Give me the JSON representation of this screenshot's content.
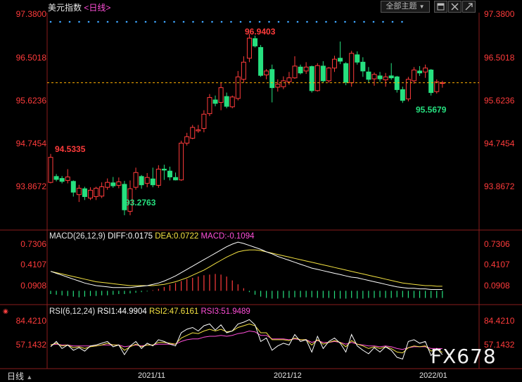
{
  "header": {
    "title": "美元指数",
    "period": "<日线>",
    "btn_theme": "全部主题",
    "btn_theme_caret": "▼"
  },
  "main_axis": {
    "labels": [
      "97.3800",
      "96.5018",
      "95.6236",
      "94.7454",
      "93.8672"
    ]
  },
  "price_marks": {
    "high": "96.9403",
    "low": "93.2763",
    "left": "94.5335",
    "recent_low": "95.5679"
  },
  "macd": {
    "name": "MACD(26,12,9)",
    "diff": "DIFF:0.0175",
    "dea": "DEA:0.0722",
    "macd": "MACD:-0.1094",
    "axis": [
      "0.7306",
      "0.4107",
      "0.0908"
    ]
  },
  "rsi": {
    "name": "RSI(6,12,24)",
    "rsi1": "RSI1:44.9904",
    "rsi2": "RSI2:47.6161",
    "rsi3": "RSI3:51.9489",
    "axis": [
      "84.4210",
      "57.1432"
    ]
  },
  "footer": {
    "period_btn": "日线",
    "caret": "▲",
    "dates": [
      "2021/11",
      "2021/12",
      "2022/01"
    ]
  },
  "watermark": "FX678",
  "colors": {
    "up": "#ff3b3b",
    "down": "#26e07f",
    "axis": "#ff3b3b",
    "dash": "#ffb000",
    "dots": "#3fa6ff"
  },
  "chart_data": {
    "type": "candlestick",
    "y_range": [
      93.0,
      97.4
    ],
    "candles": [
      {
        "o": 93.95,
        "h": 94.53,
        "l": 93.93,
        "c": 94.46
      },
      {
        "o": 94.07,
        "h": 94.12,
        "l": 93.97,
        "c": 94.01
      },
      {
        "o": 94.03,
        "h": 94.08,
        "l": 93.93,
        "c": 93.97
      },
      {
        "o": 93.99,
        "h": 94.22,
        "l": 93.93,
        "c": 94.06
      },
      {
        "o": 93.97,
        "h": 93.99,
        "l": 93.66,
        "c": 93.75
      },
      {
        "o": 93.7,
        "h": 93.9,
        "l": 93.55,
        "c": 93.83
      },
      {
        "o": 93.82,
        "h": 93.86,
        "l": 93.59,
        "c": 93.66
      },
      {
        "o": 93.63,
        "h": 93.85,
        "l": 93.59,
        "c": 93.79
      },
      {
        "o": 93.66,
        "h": 93.86,
        "l": 93.59,
        "c": 93.83
      },
      {
        "o": 93.67,
        "h": 93.95,
        "l": 93.63,
        "c": 93.86
      },
      {
        "o": 93.85,
        "h": 94.03,
        "l": 93.8,
        "c": 93.95
      },
      {
        "o": 93.94,
        "h": 94.06,
        "l": 93.84,
        "c": 93.88
      },
      {
        "o": 93.89,
        "h": 94.05,
        "l": 93.83,
        "c": 93.96
      },
      {
        "o": 93.91,
        "h": 93.98,
        "l": 93.28,
        "c": 93.39
      },
      {
        "o": 93.36,
        "h": 93.99,
        "l": 93.28,
        "c": 93.82
      },
      {
        "o": 93.85,
        "h": 94.25,
        "l": 93.8,
        "c": 94.15
      },
      {
        "o": 94.07,
        "h": 94.1,
        "l": 93.82,
        "c": 93.9
      },
      {
        "o": 93.93,
        "h": 94.14,
        "l": 93.85,
        "c": 94.05
      },
      {
        "o": 94.02,
        "h": 94.25,
        "l": 93.85,
        "c": 93.9
      },
      {
        "o": 93.89,
        "h": 94.3,
        "l": 93.84,
        "c": 94.22
      },
      {
        "o": 94.22,
        "h": 94.31,
        "l": 94.0,
        "c": 94.2
      },
      {
        "o": 94.18,
        "h": 94.27,
        "l": 93.99,
        "c": 94.06
      },
      {
        "o": 94.05,
        "h": 94.15,
        "l": 93.99,
        "c": 94.0
      },
      {
        "o": 94.0,
        "h": 94.8,
        "l": 93.98,
        "c": 94.75
      },
      {
        "o": 94.75,
        "h": 94.96,
        "l": 94.7,
        "c": 94.88
      },
      {
        "o": 94.85,
        "h": 95.12,
        "l": 94.83,
        "c": 95.07
      },
      {
        "o": 95.0,
        "h": 95.12,
        "l": 94.96,
        "c": 95.02
      },
      {
        "o": 95.05,
        "h": 95.42,
        "l": 94.97,
        "c": 95.34
      },
      {
        "o": 95.35,
        "h": 95.75,
        "l": 95.3,
        "c": 95.68
      },
      {
        "o": 95.63,
        "h": 95.72,
        "l": 95.5,
        "c": 95.56
      },
      {
        "o": 95.58,
        "h": 95.98,
        "l": 95.42,
        "c": 95.88
      },
      {
        "o": 95.7,
        "h": 95.78,
        "l": 95.46,
        "c": 95.5
      },
      {
        "o": 95.49,
        "h": 95.72,
        "l": 95.46,
        "c": 95.69
      },
      {
        "o": 95.66,
        "h": 96.22,
        "l": 95.62,
        "c": 96.1
      },
      {
        "o": 96.05,
        "h": 96.52,
        "l": 95.98,
        "c": 96.4
      },
      {
        "o": 96.48,
        "h": 96.98,
        "l": 96.4,
        "c": 96.89
      },
      {
        "o": 96.88,
        "h": 96.94,
        "l": 96.7,
        "c": 96.73
      },
      {
        "o": 96.7,
        "h": 96.75,
        "l": 96.1,
        "c": 96.13
      },
      {
        "o": 96.14,
        "h": 96.26,
        "l": 96.05,
        "c": 96.22
      },
      {
        "o": 96.25,
        "h": 96.35,
        "l": 95.58,
        "c": 95.88
      },
      {
        "o": 95.89,
        "h": 96.05,
        "l": 95.8,
        "c": 95.95
      },
      {
        "o": 95.9,
        "h": 96.11,
        "l": 95.85,
        "c": 96.02
      },
      {
        "o": 96.0,
        "h": 96.2,
        "l": 95.94,
        "c": 96.08
      },
      {
        "o": 96.08,
        "h": 96.52,
        "l": 96.06,
        "c": 96.32
      },
      {
        "o": 96.3,
        "h": 96.35,
        "l": 96.15,
        "c": 96.18
      },
      {
        "o": 96.22,
        "h": 96.4,
        "l": 96.16,
        "c": 96.3
      },
      {
        "o": 96.31,
        "h": 96.33,
        "l": 95.78,
        "c": 95.82
      },
      {
        "o": 95.82,
        "h": 96.38,
        "l": 95.8,
        "c": 96.33
      },
      {
        "o": 96.32,
        "h": 96.42,
        "l": 95.98,
        "c": 96.02
      },
      {
        "o": 96.02,
        "h": 96.3,
        "l": 95.98,
        "c": 96.28
      },
      {
        "o": 96.28,
        "h": 96.53,
        "l": 96.2,
        "c": 96.46
      },
      {
        "o": 96.48,
        "h": 96.82,
        "l": 96.36,
        "c": 96.42
      },
      {
        "o": 96.37,
        "h": 96.4,
        "l": 95.93,
        "c": 95.99
      },
      {
        "o": 95.98,
        "h": 96.63,
        "l": 95.9,
        "c": 96.58
      },
      {
        "o": 96.55,
        "h": 96.62,
        "l": 96.35,
        "c": 96.4
      },
      {
        "o": 96.4,
        "h": 96.5,
        "l": 96.1,
        "c": 96.22
      },
      {
        "o": 96.2,
        "h": 96.3,
        "l": 95.98,
        "c": 96.05
      },
      {
        "o": 96.06,
        "h": 96.19,
        "l": 95.92,
        "c": 96.15
      },
      {
        "o": 96.12,
        "h": 96.2,
        "l": 96.0,
        "c": 96.06
      },
      {
        "o": 96.04,
        "h": 96.18,
        "l": 95.9,
        "c": 96.1
      },
      {
        "o": 96.12,
        "h": 96.38,
        "l": 96.04,
        "c": 96.08
      },
      {
        "o": 96.1,
        "h": 96.12,
        "l": 95.78,
        "c": 95.84
      },
      {
        "o": 95.84,
        "h": 95.9,
        "l": 95.57,
        "c": 95.62
      },
      {
        "o": 95.65,
        "h": 96.1,
        "l": 95.6,
        "c": 96.05
      },
      {
        "o": 96.02,
        "h": 96.3,
        "l": 95.96,
        "c": 96.24
      },
      {
        "o": 96.22,
        "h": 96.32,
        "l": 96.12,
        "c": 96.18
      },
      {
        "o": 96.2,
        "h": 96.35,
        "l": 96.08,
        "c": 96.28
      },
      {
        "o": 96.24,
        "h": 96.26,
        "l": 95.72,
        "c": 95.78
      },
      {
        "o": 95.8,
        "h": 96.05,
        "l": 95.76,
        "c": 96.0
      },
      {
        "o": 95.98,
        "h": 96.02,
        "l": 95.88,
        "c": 95.98
      }
    ],
    "current_level": 95.98,
    "macd_hist": [
      -0.05,
      -0.06,
      -0.07,
      -0.08,
      -0.09,
      -0.1,
      -0.09,
      -0.08,
      -0.08,
      -0.07,
      -0.07,
      -0.06,
      -0.05,
      -0.05,
      -0.04,
      -0.03,
      -0.02,
      -0.01,
      0.01,
      0.03,
      0.06,
      0.09,
      0.12,
      0.15,
      0.18,
      0.2,
      0.22,
      0.24,
      0.25,
      0.26,
      0.25,
      0.22,
      0.16,
      0.1,
      0.04,
      -0.02,
      -0.06,
      -0.09,
      -0.11,
      -0.12,
      -0.12,
      -0.11,
      -0.11,
      -0.1,
      -0.1,
      -0.1,
      -0.1,
      -0.11,
      -0.11,
      -0.11,
      -0.12,
      -0.12,
      -0.12,
      -0.11,
      -0.12,
      -0.12,
      -0.11,
      -0.11,
      -0.1,
      -0.11,
      -0.11,
      -0.1,
      -0.1,
      -0.11,
      -0.11,
      -0.11,
      -0.11,
      -0.11,
      -0.11,
      -0.11
    ],
    "macd_diff": [
      0.3,
      0.27,
      0.24,
      0.21,
      0.18,
      0.15,
      0.12,
      0.1,
      0.08,
      0.07,
      0.06,
      0.05,
      0.05,
      0.05,
      0.05,
      0.06,
      0.07,
      0.08,
      0.1,
      0.12,
      0.15,
      0.19,
      0.23,
      0.28,
      0.33,
      0.38,
      0.43,
      0.48,
      0.53,
      0.58,
      0.63,
      0.68,
      0.72,
      0.75,
      0.73,
      0.7,
      0.67,
      0.64,
      0.6,
      0.57,
      0.53,
      0.5,
      0.47,
      0.44,
      0.41,
      0.38,
      0.35,
      0.33,
      0.31,
      0.29,
      0.27,
      0.25,
      0.23,
      0.21,
      0.2,
      0.18,
      0.16,
      0.14,
      0.12,
      0.1,
      0.08,
      0.06,
      0.05,
      0.04,
      0.04,
      0.03,
      0.03,
      0.02,
      0.02,
      0.02
    ],
    "macd_dea": [
      0.3,
      0.28,
      0.26,
      0.24,
      0.22,
      0.2,
      0.18,
      0.16,
      0.14,
      0.13,
      0.12,
      0.11,
      0.1,
      0.09,
      0.08,
      0.08,
      0.08,
      0.08,
      0.08,
      0.09,
      0.1,
      0.12,
      0.14,
      0.17,
      0.2,
      0.24,
      0.28,
      0.32,
      0.37,
      0.42,
      0.47,
      0.52,
      0.56,
      0.6,
      0.62,
      0.63,
      0.63,
      0.62,
      0.6,
      0.58,
      0.56,
      0.54,
      0.52,
      0.5,
      0.48,
      0.46,
      0.44,
      0.42,
      0.4,
      0.38,
      0.36,
      0.34,
      0.32,
      0.3,
      0.28,
      0.26,
      0.24,
      0.22,
      0.2,
      0.18,
      0.16,
      0.14,
      0.12,
      0.11,
      0.1,
      0.09,
      0.08,
      0.08,
      0.07,
      0.07
    ],
    "rsi1": [
      54,
      60,
      52,
      56,
      50,
      53,
      49,
      55,
      56,
      58,
      60,
      54,
      56,
      45,
      55,
      60,
      52,
      58,
      55,
      62,
      60,
      57,
      55,
      70,
      74,
      76,
      72,
      78,
      80,
      73,
      79,
      70,
      72,
      80,
      82,
      85,
      79,
      60,
      64,
      50,
      55,
      58,
      56,
      68,
      60,
      62,
      48,
      66,
      52,
      60,
      64,
      58,
      48,
      68,
      55,
      50,
      46,
      53,
      48,
      54,
      50,
      42,
      40,
      60,
      62,
      58,
      60,
      44,
      52,
      45
    ],
    "rsi2": [
      56,
      58,
      55,
      56,
      53,
      54,
      52,
      54,
      55,
      56,
      58,
      56,
      56,
      50,
      54,
      57,
      54,
      56,
      56,
      59,
      59,
      58,
      57,
      64,
      67,
      70,
      69,
      72,
      74,
      72,
      74,
      71,
      72,
      76,
      78,
      80,
      78,
      70,
      70,
      62,
      62,
      62,
      61,
      64,
      62,
      62,
      56,
      62,
      57,
      59,
      61,
      59,
      54,
      61,
      57,
      55,
      52,
      54,
      52,
      54,
      52,
      48,
      47,
      53,
      55,
      54,
      55,
      49,
      51,
      47.6
    ],
    "rsi3": [
      56,
      57,
      56,
      56,
      55,
      55,
      55,
      55,
      55,
      56,
      56,
      56,
      56,
      54,
      55,
      56,
      55,
      56,
      56,
      57,
      57,
      57,
      57,
      60,
      62,
      63,
      63,
      65,
      66,
      66,
      67,
      66,
      67,
      69,
      70,
      72,
      71,
      67,
      67,
      63,
      63,
      63,
      62,
      63,
      62,
      62,
      59,
      61,
      59,
      59,
      60,
      59,
      57,
      59,
      57,
      56,
      55,
      55,
      54,
      55,
      54,
      52,
      51,
      53,
      54,
      54,
      54,
      52,
      52,
      51.9
    ]
  }
}
